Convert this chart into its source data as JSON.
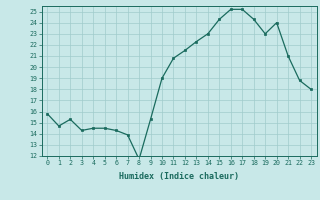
{
  "x": [
    0,
    1,
    2,
    3,
    4,
    5,
    6,
    7,
    8,
    9,
    10,
    11,
    12,
    13,
    14,
    15,
    16,
    17,
    18,
    19,
    20,
    21,
    22,
    23
  ],
  "y": [
    15.8,
    14.7,
    15.3,
    14.3,
    14.5,
    14.5,
    14.3,
    13.9,
    11.7,
    15.3,
    19.0,
    20.8,
    21.5,
    22.3,
    23.0,
    24.3,
    25.2,
    25.2,
    24.3,
    23.0,
    24.0,
    21.0,
    18.8,
    18.0
  ],
  "line_color": "#1a6b5e",
  "marker_color": "#1a6b5e",
  "bg_color": "#c8e8e8",
  "grid_color": "#a0cccc",
  "xlabel": "Humidex (Indice chaleur)",
  "ylim": [
    12,
    25.5
  ],
  "yticks": [
    12,
    13,
    14,
    15,
    16,
    17,
    18,
    19,
    20,
    21,
    22,
    23,
    24,
    25
  ],
  "xticks": [
    0,
    1,
    2,
    3,
    4,
    5,
    6,
    7,
    8,
    9,
    10,
    11,
    12,
    13,
    14,
    15,
    16,
    17,
    18,
    19,
    20,
    21,
    22,
    23
  ],
  "xtick_labels": [
    "0",
    "1",
    "2",
    "3",
    "4",
    "5",
    "6",
    "7",
    "8",
    "9",
    "10",
    "11",
    "12",
    "13",
    "14",
    "15",
    "16",
    "17",
    "18",
    "19",
    "20",
    "21",
    "22",
    "23"
  ],
  "axis_color": "#1a6b5e"
}
